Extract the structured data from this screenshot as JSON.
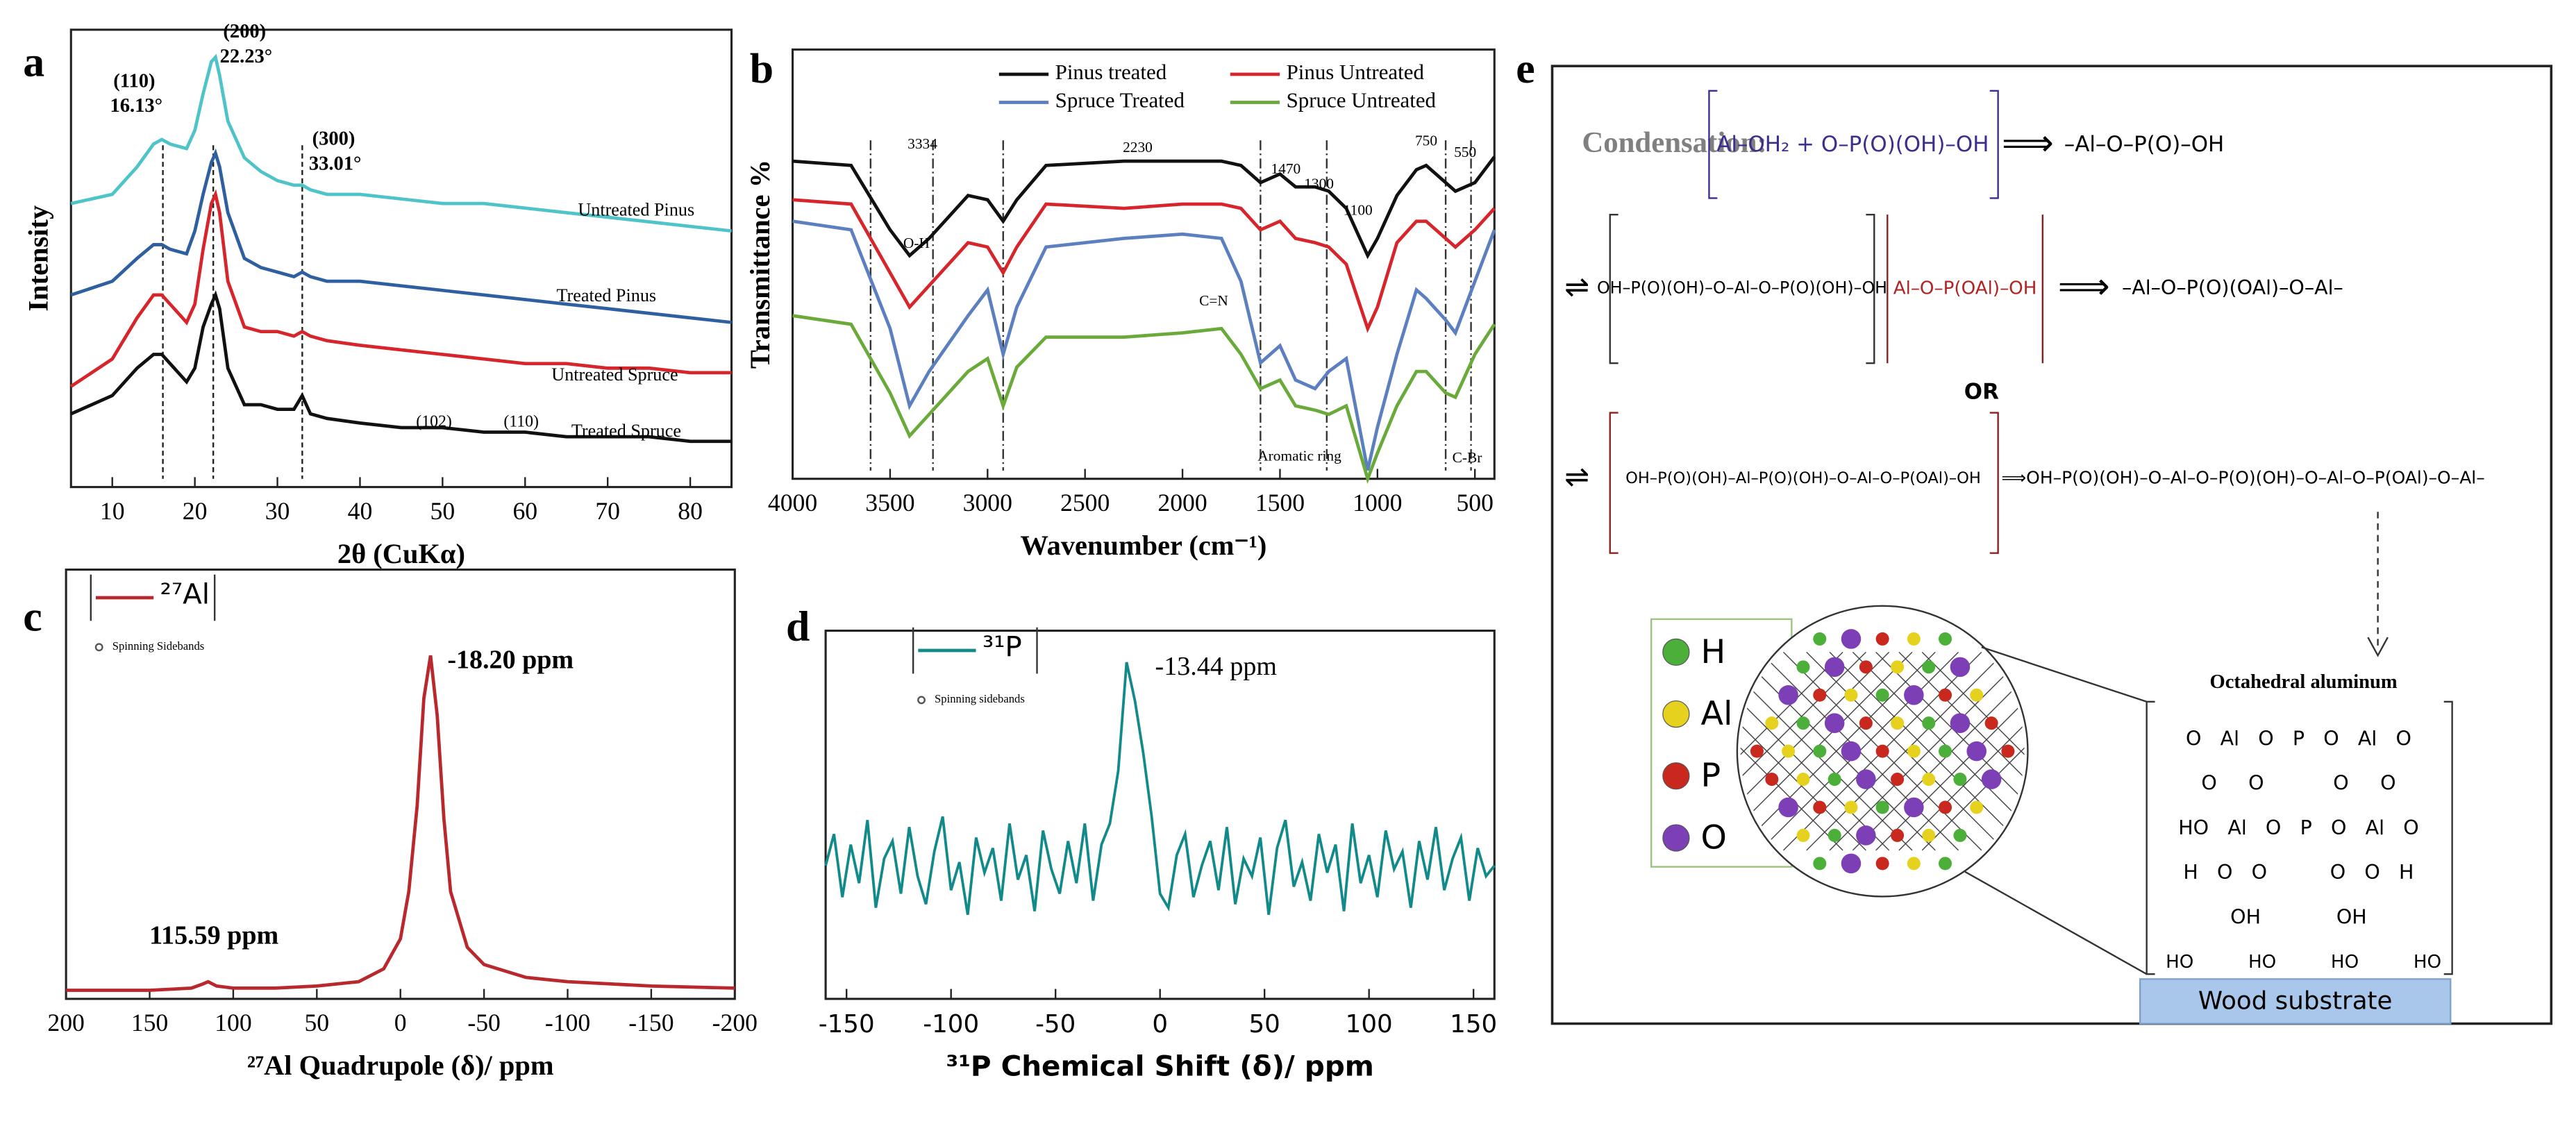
{
  "chart_data": [
    {
      "type": "line",
      "label": "a",
      "xlabel": "2θ (CuKα)",
      "ylabel": "Intensity",
      "xlim": [
        5,
        85
      ],
      "ylim": [
        0,
        100
      ],
      "xticks": [
        10,
        20,
        30,
        40,
        50,
        60,
        70,
        80
      ],
      "x": [
        5,
        10,
        13,
        15,
        16,
        17,
        19,
        20,
        21,
        22,
        22.5,
        23,
        24,
        26,
        28,
        30,
        32,
        33,
        34,
        36,
        40,
        45,
        50,
        55,
        60,
        65,
        70,
        75,
        80,
        85
      ],
      "series": [
        {
          "name": "Untreated Pinus",
          "color": "#4fc4c8",
          "values": [
            62,
            64,
            70,
            75,
            76,
            75,
            74,
            78,
            86,
            93,
            94,
            90,
            80,
            72,
            69,
            67,
            66,
            66,
            65,
            64,
            64,
            63,
            62,
            62,
            61,
            60,
            59,
            58,
            57,
            56
          ]
        },
        {
          "name": "Treated Pinus",
          "color": "#2e5f9e",
          "values": [
            42,
            45,
            50,
            53,
            53,
            52,
            51,
            56,
            64,
            71,
            73,
            70,
            60,
            50,
            48,
            47,
            46,
            47,
            46,
            45,
            45,
            44,
            43,
            42,
            41,
            40,
            39,
            38,
            37,
            36
          ]
        },
        {
          "name": "Untreated Spruce",
          "color": "#d7262b",
          "values": [
            22,
            28,
            37,
            42,
            42,
            40,
            36,
            40,
            52,
            62,
            64,
            60,
            45,
            35,
            34,
            34,
            33,
            34,
            33,
            32,
            31,
            30,
            29,
            28,
            27,
            27,
            26,
            26,
            25,
            25
          ]
        },
        {
          "name": "Treated Spruce",
          "color": "#111111",
          "values": [
            16,
            20,
            26,
            29,
            29,
            27,
            23,
            26,
            35,
            40,
            42,
            39,
            26,
            18,
            18,
            17,
            17,
            20,
            16,
            15,
            14,
            13,
            13,
            12,
            12,
            11,
            11,
            11,
            10,
            10
          ]
        }
      ],
      "peaks": [
        16.13,
        22.23,
        33.01
      ],
      "peak_names": [
        "(110)",
        "(200)",
        "(300)"
      ],
      "peak_value_labels": [
        "16.13°",
        "22.23°",
        "33.01°"
      ],
      "minor_labels": [
        "(102)",
        "(110)"
      ]
    },
    {
      "type": "line",
      "label": "b",
      "xlabel": "Wavenumber (cm⁻¹)",
      "ylabel": "Transmittance %",
      "xlim": [
        4000,
        400
      ],
      "ylim": [
        0,
        100
      ],
      "xticks": [
        4000,
        3500,
        3000,
        2500,
        2000,
        1500,
        1000,
        500
      ],
      "x": [
        4000,
        3700,
        3500,
        3400,
        3300,
        3100,
        3000,
        2920,
        2850,
        2700,
        2300,
        2000,
        1800,
        1700,
        1600,
        1500,
        1420,
        1320,
        1250,
        1160,
        1050,
        1000,
        900,
        800,
        750,
        650,
        600,
        500,
        400
      ],
      "series": [
        {
          "name": "Pinus treated",
          "color": "#111111",
          "values": [
            74,
            73,
            58,
            52,
            56,
            66,
            65,
            60,
            65,
            73,
            74,
            74,
            74,
            73,
            69,
            71,
            68,
            68,
            67,
            63,
            52,
            56,
            66,
            72,
            73,
            69,
            67,
            69,
            75
          ]
        },
        {
          "name": "Pinus Untreated",
          "color": "#d7262b",
          "values": [
            65,
            64,
            48,
            40,
            45,
            55,
            54,
            48,
            54,
            64,
            63,
            64,
            64,
            63,
            58,
            60,
            56,
            55,
            54,
            50,
            35,
            40,
            55,
            60,
            60,
            56,
            54,
            58,
            63
          ]
        },
        {
          "name": "Spruce Treated",
          "color": "#5b7fbf",
          "values": [
            60,
            58,
            35,
            17,
            25,
            38,
            44,
            29,
            40,
            54,
            56,
            57,
            56,
            46,
            27,
            31,
            23,
            21,
            25,
            28,
            2,
            12,
            29,
            44,
            42,
            37,
            34,
            46,
            58
          ]
        },
        {
          "name": "Spruce Untreated",
          "color": "#6aaa3a",
          "values": [
            38,
            36,
            20,
            10,
            15,
            25,
            28,
            17,
            26,
            33,
            33,
            34,
            35,
            29,
            21,
            23,
            17,
            16,
            15,
            17,
            0,
            6,
            17,
            25,
            25,
            20,
            19,
            29,
            36
          ]
        }
      ],
      "ref_lines": [
        3600,
        3280,
        2920,
        1600,
        1260,
        650,
        520
      ],
      "band_positions": [
        3334,
        2230,
        1470,
        1300,
        1100,
        750,
        550
      ],
      "group_labels": [
        "O-H",
        "C=N",
        "Aromatic ring",
        "C-Br"
      ]
    },
    {
      "type": "line",
      "label": "c",
      "xlabel": "²⁷Al Quadrupole (δ)/ ppm",
      "xlim": [
        200,
        -200
      ],
      "ylim": [
        0,
        100
      ],
      "xticks": [
        200,
        150,
        100,
        50,
        0,
        -50,
        -100,
        -150,
        -200
      ],
      "x": [
        200,
        150,
        125,
        118,
        115,
        110,
        100,
        75,
        50,
        25,
        10,
        0,
        -5,
        -10,
        -14,
        -18,
        -22,
        -26,
        -30,
        -40,
        -50,
        -75,
        -100,
        -150,
        -200
      ],
      "series": [
        {
          "name": "²⁷Al",
          "color": "#b8282c",
          "values": [
            2,
            2,
            2.5,
            3.5,
            4,
            3,
            2.5,
            2.5,
            3,
            4,
            7,
            14,
            25,
            45,
            70,
            80,
            66,
            42,
            25,
            12,
            8,
            5,
            4,
            3,
            2.5
          ]
        }
      ],
      "peaks": [
        -18.2,
        115.59
      ],
      "peak_value_labels": [
        "-18.20 ppm",
        "115.59 ppm"
      ],
      "note": "Spinning Sidebands"
    },
    {
      "type": "line",
      "label": "d",
      "xlabel": "³¹P  Chemical Shift (δ)/ ppm",
      "xlim": [
        -160,
        160
      ],
      "ylim": [
        0,
        105
      ],
      "xticks": [
        -150,
        -100,
        -50,
        0,
        50,
        100,
        150
      ],
      "x": [
        -160,
        -156,
        -152,
        -148,
        -144,
        -140,
        -136,
        -132,
        -128,
        -124,
        -120,
        -116,
        -112,
        -108,
        -104,
        -100,
        -96,
        -92,
        -88,
        -84,
        -80,
        -76,
        -72,
        -68,
        -64,
        -60,
        -56,
        -52,
        -48,
        -44,
        -40,
        -36,
        -32,
        -28,
        -24,
        -20,
        -16,
        -12,
        -8,
        -4,
        0,
        4,
        8,
        12,
        16,
        20,
        24,
        28,
        32,
        36,
        40,
        44,
        48,
        52,
        56,
        60,
        64,
        68,
        72,
        76,
        80,
        84,
        88,
        92,
        96,
        100,
        104,
        108,
        112,
        116,
        120,
        124,
        128,
        132,
        136,
        140,
        144,
        148,
        152,
        156,
        160
      ],
      "series": [
        {
          "name": "³¹P",
          "color": "#138a8a",
          "values": [
            38,
            47,
            29,
            44,
            33,
            51,
            26,
            40,
            45,
            30,
            49,
            35,
            27,
            42,
            52,
            31,
            39,
            24,
            46,
            36,
            43,
            28,
            50,
            34,
            41,
            25,
            48,
            37,
            30,
            45,
            33,
            50,
            28,
            44,
            50,
            65,
            96,
            85,
            70,
            52,
            30,
            26,
            41,
            47,
            29,
            38,
            45,
            31,
            49,
            27,
            40,
            35,
            46,
            24,
            43,
            51,
            32,
            39,
            28,
            47,
            36,
            44,
            25,
            50,
            33,
            41,
            29,
            48,
            37,
            42,
            26,
            45,
            34,
            49,
            31,
            40,
            46,
            28,
            43,
            35,
            38
          ]
        }
      ],
      "peaks": [
        -13.44
      ],
      "peak_value_labels": [
        "-13.44 ppm"
      ],
      "note": "Spinning sidebands"
    }
  ],
  "diagram": {
    "label": "e",
    "condensation": "Condensation:",
    "row1": [
      "Al–OH₂ + O–P(O)(OH)–OH",
      "⟹",
      "–Al–O–P(O)–OH"
    ],
    "row2": [
      "⇌",
      "OH–P(O)(OH)–O–Al–O–P(O)(OH)–OH",
      "Al–O–P(OAl)–OH",
      "⟹",
      "–Al–O–P(O)(OAl)–O–Al–"
    ],
    "or": "OR",
    "row3": [
      "⇌",
      "OH–P(O)(OH)–Al–P(O)(OH)–O–Al–O–P(OAl)–OH",
      "⟹OH–P(O)(OH)–O–Al–O–P(O)(OH)–O–Al–O–P(OAl)–O–Al–"
    ],
    "legend": [
      "H",
      "Al",
      "P",
      "O"
    ],
    "legend_colors": [
      "#4caf3a",
      "#e6d21e",
      "#c8281e",
      "#7d3fb5"
    ],
    "structure_title": "Octahedral aluminum",
    "structure_rows": [
      "O   Al   O   P   O   Al   O",
      "O     O           O     O",
      "HO   Al   O   P   O   Al   O",
      "H   O   O          O   O   H",
      "OH            OH"
    ],
    "anchors": [
      "HO",
      "HO",
      "HO",
      "HO"
    ],
    "substrate": "Wood substrate"
  }
}
